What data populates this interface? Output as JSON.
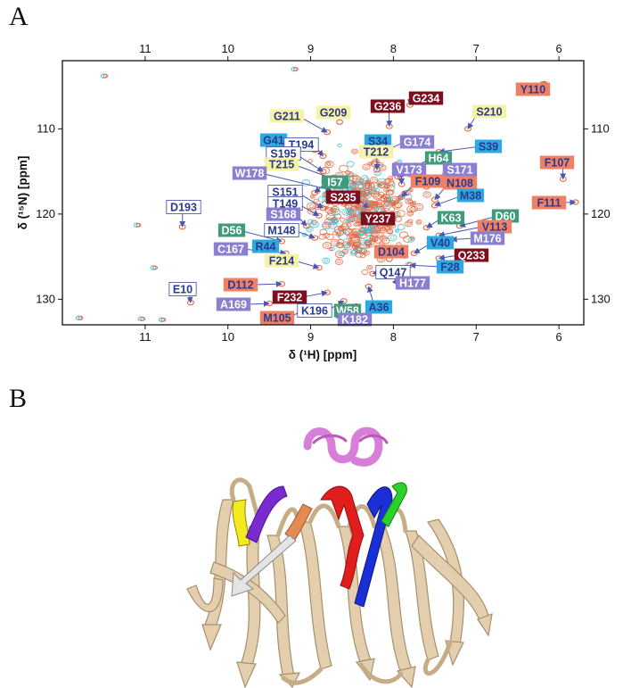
{
  "panels": {
    "a": "A",
    "b": "B"
  },
  "chart_data": {
    "type": "scatter",
    "xlabel": "δ (¹H) [ppm]",
    "ylabel": "δ (¹⁵N) [ppm]",
    "xlim": [
      12.0,
      5.7
    ],
    "ylim": [
      102.0,
      133.0
    ],
    "x_ticks": [
      11,
      10,
      9,
      8,
      7,
      6
    ],
    "y_ticks": [
      110,
      120,
      130
    ],
    "colors": {
      "spectrum_a": "#e4673f",
      "spectrum_b": "#39c2d6",
      "yellow": "#f7f3a6",
      "blue": "#2ea8e0",
      "green": "#3f9b7a",
      "purple": "#8b7fd1",
      "salmon": "#f08063",
      "darkred": "#7d0e1b",
      "white": "#ffffff",
      "label_text": "#2a3a8c"
    },
    "assignments": [
      {
        "label": "Y110",
        "style": "salmon",
        "h": 6.18,
        "n": 104.7
      },
      {
        "label": "G234",
        "style": "darkred",
        "h": 7.8,
        "n": 107.2
      },
      {
        "label": "G236",
        "style": "darkred",
        "h": 8.05,
        "n": 109.7
      },
      {
        "label": "S210",
        "style": "yellow",
        "h": 7.1,
        "n": 110.0
      },
      {
        "label": "G211",
        "style": "yellow",
        "h": 8.8,
        "n": 110.4
      },
      {
        "label": "G209",
        "style": "yellow",
        "h": 8.65,
        "n": 109.2
      },
      {
        "label": "G41",
        "style": "blue",
        "h": 8.95,
        "n": 112.5
      },
      {
        "label": "T194",
        "style": "white",
        "h": 8.85,
        "n": 113.2
      },
      {
        "label": "S34",
        "style": "blue",
        "h": 8.3,
        "n": 112.8
      },
      {
        "label": "G174",
        "style": "purple",
        "h": 8.1,
        "n": 112.6
      },
      {
        "label": "S39",
        "style": "blue",
        "h": 7.45,
        "n": 112.7
      },
      {
        "label": "S195",
        "style": "white",
        "h": 8.85,
        "n": 115.0
      },
      {
        "label": "T212",
        "style": "yellow",
        "h": 8.2,
        "n": 114.8
      },
      {
        "label": "H64",
        "style": "green",
        "h": 7.95,
        "n": 115.6
      },
      {
        "label": "T215",
        "style": "yellow",
        "h": 8.6,
        "n": 116.3
      },
      {
        "label": "F107",
        "style": "salmon",
        "h": 5.95,
        "n": 115.9
      },
      {
        "label": "W178",
        "style": "purple",
        "h": 8.75,
        "n": 117.2
      },
      {
        "label": "I57",
        "style": "green",
        "h": 8.95,
        "n": 117.5
      },
      {
        "label": "V173",
        "style": "purple",
        "h": 7.9,
        "n": 116.5
      },
      {
        "label": "S171",
        "style": "purple",
        "h": 7.6,
        "n": 116.8
      },
      {
        "label": "F109",
        "style": "salmon",
        "h": 7.9,
        "n": 118.0
      },
      {
        "label": "N108",
        "style": "salmon",
        "h": 7.5,
        "n": 118.3
      },
      {
        "label": "M38",
        "style": "blue",
        "h": 7.5,
        "n": 119.0
      },
      {
        "label": "S151",
        "style": "white",
        "h": 8.85,
        "n": 119.3
      },
      {
        "label": "S235",
        "style": "darkred",
        "h": 8.3,
        "n": 119.3
      },
      {
        "label": "F111",
        "style": "salmon",
        "h": 5.8,
        "n": 118.6
      },
      {
        "label": "T149",
        "style": "white",
        "h": 8.9,
        "n": 120.2
      },
      {
        "label": "D193",
        "style": "white",
        "h": 10.55,
        "n": 121.5
      },
      {
        "label": "S168",
        "style": "purple",
        "h": 9.05,
        "n": 121.4
      },
      {
        "label": "Y237",
        "style": "darkred",
        "h": 8.05,
        "n": 121.3
      },
      {
        "label": "K63",
        "style": "green",
        "h": 7.6,
        "n": 121.6
      },
      {
        "label": "D60",
        "style": "green",
        "h": 7.2,
        "n": 121.4
      },
      {
        "label": "D56",
        "style": "green",
        "h": 9.35,
        "n": 123.2
      },
      {
        "label": "M148",
        "style": "white",
        "h": 8.95,
        "n": 122.8
      },
      {
        "label": "V113",
        "style": "salmon",
        "h": 7.45,
        "n": 122.5
      },
      {
        "label": "M176",
        "style": "purple",
        "h": 7.3,
        "n": 123.0
      },
      {
        "label": "R44",
        "style": "blue",
        "h": 9.45,
        "n": 124.2
      },
      {
        "label": "V40",
        "style": "blue",
        "h": 7.75,
        "n": 124.6
      },
      {
        "label": "C167",
        "style": "purple",
        "h": 9.3,
        "n": 124.6
      },
      {
        "label": "D104",
        "style": "salmon",
        "h": 8.05,
        "n": 125.3
      },
      {
        "label": "Q233",
        "style": "darkred",
        "h": 7.45,
        "n": 125.2
      },
      {
        "label": "F214",
        "style": "yellow",
        "h": 8.9,
        "n": 126.3
      },
      {
        "label": "F28",
        "style": "blue",
        "h": 7.8,
        "n": 126.0
      },
      {
        "label": "Q147",
        "style": "white",
        "h": 8.25,
        "n": 127.0
      },
      {
        "label": "H177",
        "style": "purple",
        "h": 7.95,
        "n": 127.6
      },
      {
        "label": "D112",
        "style": "salmon",
        "h": 9.35,
        "n": 128.2
      },
      {
        "label": "E10",
        "style": "white",
        "h": 10.45,
        "n": 130.4
      },
      {
        "label": "F232",
        "style": "darkred",
        "h": 8.8,
        "n": 129.2
      },
      {
        "label": "A36",
        "style": "blue",
        "h": 8.3,
        "n": 128.5
      },
      {
        "label": "A169",
        "style": "purple",
        "h": 9.5,
        "n": 130.5
      },
      {
        "label": "K196",
        "style": "white",
        "h": 8.6,
        "n": 130.2
      },
      {
        "label": "W58",
        "style": "green",
        "h": 8.45,
        "n": 130.8
      },
      {
        "label": "M105",
        "style": "salmon",
        "h": 9.05,
        "n": 131.0
      },
      {
        "label": "K182",
        "style": "purple",
        "h": 8.65,
        "n": 131.6
      }
    ]
  }
}
